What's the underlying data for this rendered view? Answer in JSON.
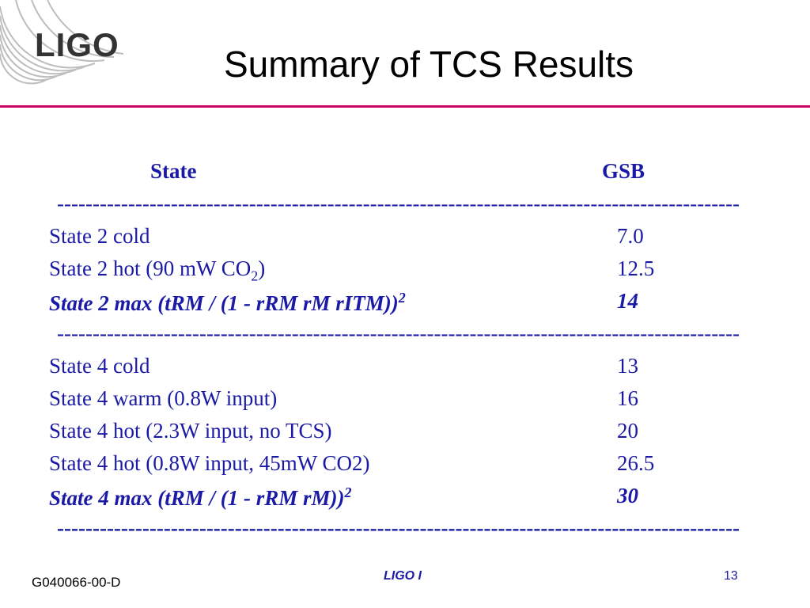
{
  "logo": {
    "text": "LIGO"
  },
  "title": "Summary of TCS Results",
  "table": {
    "headers": {
      "state": "State",
      "gsb": "GSB"
    },
    "separator": "--------------------------------------------------------------------------------------------------------------------------------",
    "rows": [
      {
        "state": "State 2 cold",
        "gsb": "7.0"
      },
      {
        "state_main": "State 2 hot (90 mW CO",
        "state_sub": "2",
        "state_tail": ")",
        "gsb": "12.5"
      },
      {
        "state_main": "State 2 max (tRM / (1 - rRM rM rITM))",
        "state_sup": "2",
        "gsb": "14"
      },
      {
        "state": "State 4 cold",
        "gsb": "13"
      },
      {
        "state": "State 4 warm (0.8W input)",
        "gsb": "16"
      },
      {
        "state": "State 4 hot (2.3W input, no TCS)",
        "gsb": "20"
      },
      {
        "state": "State 4 hot (0.8W input, 45mW CO2)",
        "gsb": "26.5"
      },
      {
        "state_main": "State 4 max (tRM / (1 - rRM rM))",
        "state_sup": "2",
        "gsb": "30"
      }
    ]
  },
  "footer": {
    "doc_id": "G040066-00-D",
    "center": "LIGO I",
    "page_number": "13"
  },
  "colors": {
    "accent_rule": "#cc0066",
    "table_text": "#1a1aa6"
  }
}
